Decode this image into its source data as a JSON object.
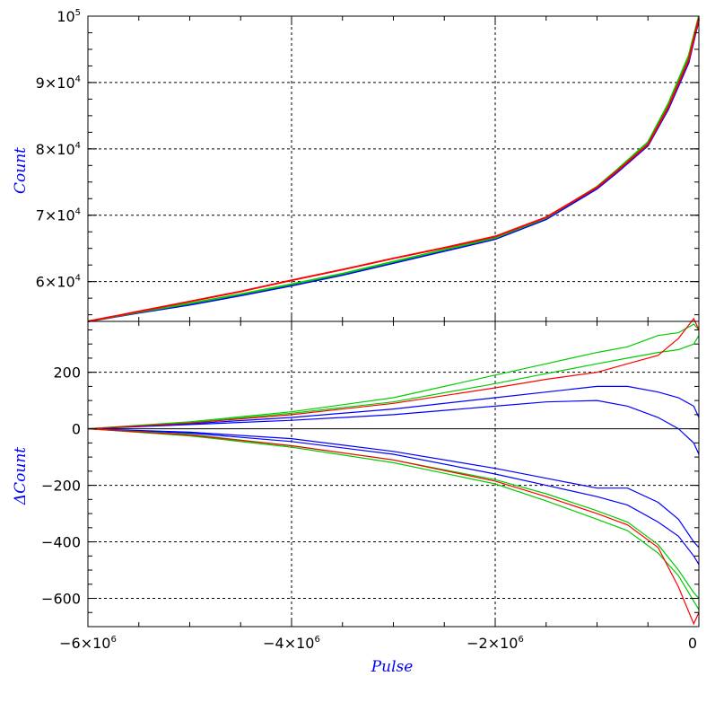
{
  "chart_data": [
    {
      "type": "line",
      "panel": "top",
      "ylabel": "Count",
      "xlim": [
        -6000000,
        0
      ],
      "ylim": [
        54000,
        100000
      ],
      "grid": true,
      "x_ticks": [
        {
          "value": -6000000,
          "mantissa": "−6×10",
          "exp": "6"
        },
        {
          "value": -4000000,
          "mantissa": "−4×10",
          "exp": "6"
        },
        {
          "value": -2000000,
          "mantissa": "−2×10",
          "exp": "6"
        },
        {
          "value": 0,
          "mantissa": "0",
          "exp": ""
        }
      ],
      "y_ticks": [
        {
          "value": 60000,
          "mantissa": "6×10",
          "exp": "4"
        },
        {
          "value": 70000,
          "mantissa": "7×10",
          "exp": "4"
        },
        {
          "value": 80000,
          "mantissa": "8×10",
          "exp": "4"
        },
        {
          "value": 90000,
          "mantissa": "9×10",
          "exp": "4"
        },
        {
          "value": 100000,
          "mantissa": "10",
          "exp": "5"
        }
      ],
      "x": [
        -6000000,
        -5500000,
        -5000000,
        -4500000,
        -4000000,
        -3500000,
        -3000000,
        -2500000,
        -2000000,
        -1500000,
        -1000000,
        -800000,
        -500000,
        -300000,
        -100000,
        0
      ],
      "series": [
        {
          "color": "#0000ff",
          "values": [
            54000,
            55300,
            56500,
            57900,
            59400,
            61000,
            62800,
            64600,
            66400,
            69400,
            74000,
            76500,
            80500,
            86000,
            93000,
            99500
          ]
        },
        {
          "color": "#00cc00",
          "values": [
            54000,
            55400,
            56700,
            58100,
            59600,
            61200,
            63000,
            64800,
            66600,
            69600,
            74300,
            76900,
            81000,
            86800,
            94000,
            100000
          ]
        },
        {
          "color": "#ff0000",
          "values": [
            54000,
            55500,
            57000,
            58500,
            60200,
            61800,
            63500,
            65100,
            66800,
            69700,
            74200,
            76700,
            80700,
            86300,
            93400,
            99700
          ]
        }
      ]
    },
    {
      "type": "line",
      "panel": "bottom",
      "ylabel": "ΔCount",
      "xlabel": "Pulse",
      "xlim": [
        -6000000,
        0
      ],
      "ylim": [
        -700,
        380
      ],
      "grid": true,
      "y_ticks": [
        {
          "value": -600,
          "label": "−600"
        },
        {
          "value": -400,
          "label": "−400"
        },
        {
          "value": -200,
          "label": "−200"
        },
        {
          "value": 0,
          "label": "0"
        },
        {
          "value": 200,
          "label": "200"
        }
      ],
      "x": [
        -6000000,
        -5000000,
        -4000000,
        -3000000,
        -2000000,
        -1500000,
        -1000000,
        -700000,
        -400000,
        -200000,
        -50000,
        0
      ],
      "series": [
        {
          "color": "#0000ff",
          "values": [
            0,
            15,
            30,
            50,
            80,
            95,
            100,
            80,
            40,
            0,
            -50,
            -90
          ]
        },
        {
          "color": "#0000ff",
          "values": [
            0,
            18,
            40,
            70,
            110,
            130,
            150,
            150,
            130,
            110,
            80,
            40
          ]
        },
        {
          "color": "#00cc00",
          "values": [
            0,
            22,
            55,
            95,
            160,
            195,
            230,
            250,
            270,
            280,
            300,
            330
          ]
        },
        {
          "color": "#00cc00",
          "values": [
            0,
            25,
            60,
            110,
            190,
            230,
            270,
            290,
            330,
            340,
            370,
            350
          ]
        },
        {
          "color": "#ff0000",
          "values": [
            0,
            20,
            50,
            90,
            145,
            175,
            200,
            230,
            260,
            320,
            390,
            350
          ]
        },
        {
          "color": "#0000ff",
          "values": [
            0,
            -12,
            -35,
            -80,
            -140,
            -175,
            -210,
            -210,
            -260,
            -320,
            -400,
            -420
          ]
        },
        {
          "color": "#0000ff",
          "values": [
            0,
            -15,
            -45,
            -90,
            -160,
            -200,
            -240,
            -270,
            -330,
            -380,
            -450,
            -480
          ]
        },
        {
          "color": "#00cc00",
          "values": [
            0,
            -20,
            -60,
            -110,
            -180,
            -230,
            -290,
            -330,
            -410,
            -500,
            -580,
            -600
          ]
        },
        {
          "color": "#00cc00",
          "values": [
            0,
            -25,
            -65,
            -120,
            -195,
            -255,
            -320,
            -360,
            -440,
            -520,
            -610,
            -640
          ]
        },
        {
          "color": "#ff0000",
          "values": [
            0,
            -22,
            -60,
            -110,
            -185,
            -240,
            -300,
            -340,
            -420,
            -560,
            -690,
            -650
          ]
        }
      ]
    }
  ]
}
